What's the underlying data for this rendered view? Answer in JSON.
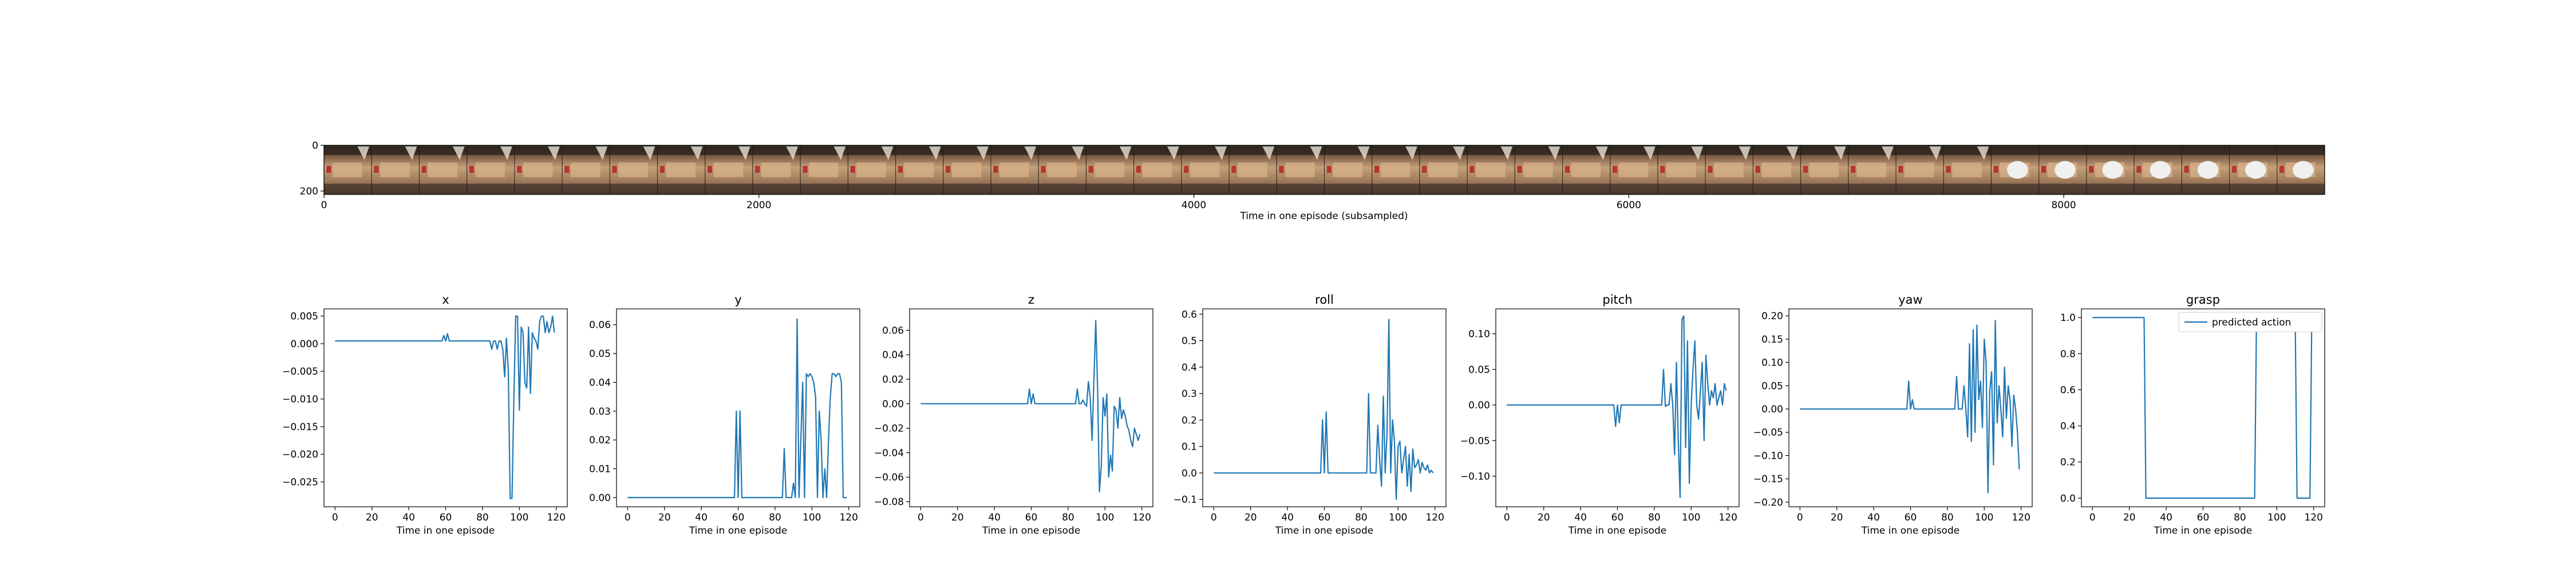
{
  "colors": {
    "series": "#1f77b4",
    "axes": "#000000",
    "background": "#ffffff"
  },
  "filmstrip": {
    "xlabel": "Time in one episode (subsampled)",
    "xticks": [
      0,
      2000,
      4000,
      6000,
      8000
    ],
    "yticks": [
      0,
      200
    ],
    "xlim": [
      0,
      9200
    ],
    "frame_count": 42
  },
  "chart_data": [
    {
      "type": "line",
      "title": "x",
      "xlabel": "Time in one episode",
      "xlim": [
        -6,
        126
      ],
      "ylim": [
        -0.0295,
        0.0063
      ],
      "xticks": [
        0,
        20,
        40,
        60,
        80,
        100,
        120
      ],
      "yticks": [
        -0.025,
        -0.02,
        -0.015,
        -0.01,
        -0.005,
        0.0,
        0.005
      ],
      "ytick_labels": [
        "−0.025",
        "−0.020",
        "−0.015",
        "−0.010",
        "−0.005",
        "0.000",
        "0.005"
      ],
      "series": [
        {
          "x": [
            0,
            58,
            59,
            60,
            61,
            62,
            63,
            84,
            85,
            86,
            87,
            88,
            89,
            90,
            91,
            92,
            93,
            94,
            95,
            96,
            97,
            98,
            99,
            100,
            101,
            102,
            103,
            104,
            105,
            106,
            107,
            108,
            109,
            110,
            111,
            112,
            113,
            114,
            115,
            116,
            117,
            118,
            119
          ],
          "y": [
            0.0005,
            0.0005,
            0.0015,
            0.0005,
            0.0018,
            0.0005,
            0.0005,
            0.0005,
            -0.001,
            0.0005,
            0.0005,
            -0.001,
            0.0005,
            0.0005,
            -0.001,
            -0.006,
            0.001,
            -0.005,
            -0.028,
            -0.028,
            -0.01,
            0.005,
            0.005,
            -0.012,
            0.003,
            0.002,
            -0.007,
            -0.008,
            0.003,
            -0.009,
            0.002,
            0.001,
            0.0005,
            -0.001,
            0.004,
            0.005,
            0.005,
            0.002,
            0.004,
            0.002,
            0.003,
            0.005,
            0.002
          ]
        }
      ]
    },
    {
      "type": "line",
      "title": "y",
      "xlabel": "Time in one episode",
      "xlim": [
        -6,
        126
      ],
      "ylim": [
        -0.0032,
        0.0655
      ],
      "xticks": [
        0,
        20,
        40,
        60,
        80,
        100,
        120
      ],
      "yticks": [
        0.0,
        0.01,
        0.02,
        0.03,
        0.04,
        0.05,
        0.06
      ],
      "ytick_labels": [
        "0.00",
        "0.01",
        "0.02",
        "0.03",
        "0.04",
        "0.05",
        "0.06"
      ],
      "series": [
        {
          "x": [
            0,
            58,
            59,
            60,
            61,
            62,
            84,
            85,
            86,
            89,
            90,
            91,
            92,
            93,
            94,
            95,
            96,
            97,
            98,
            99,
            100,
            101,
            102,
            103,
            104,
            105,
            106,
            107,
            108,
            109,
            110,
            111,
            112,
            113,
            114,
            115,
            116,
            117,
            118,
            119
          ],
          "y": [
            0.0,
            0.0,
            0.03,
            0.0,
            0.03,
            0.0,
            0.0,
            0.017,
            0.0,
            0.0,
            0.005,
            0.0,
            0.062,
            0.0,
            0.02,
            0.04,
            0.0,
            0.043,
            0.042,
            0.043,
            0.042,
            0.04,
            0.035,
            0.0,
            0.03,
            0.02,
            0.0,
            0.01,
            0.0,
            0.02,
            0.035,
            0.043,
            0.043,
            0.042,
            0.043,
            0.043,
            0.04,
            0.0,
            0.0,
            0.0
          ]
        }
      ]
    },
    {
      "type": "line",
      "title": "z",
      "xlabel": "Time in one episode",
      "xlim": [
        -6,
        126
      ],
      "ylim": [
        -0.0842,
        0.0775
      ],
      "xticks": [
        0,
        20,
        40,
        60,
        80,
        100,
        120
      ],
      "yticks": [
        -0.08,
        -0.06,
        -0.04,
        -0.02,
        0.0,
        0.02,
        0.04,
        0.06
      ],
      "ytick_labels": [
        "−0.08",
        "−0.06",
        "−0.04",
        "−0.02",
        "0.00",
        "0.02",
        "0.04",
        "0.06"
      ],
      "series": [
        {
          "x": [
            0,
            58,
            59,
            60,
            61,
            62,
            84,
            85,
            86,
            87,
            88,
            89,
            90,
            91,
            92,
            93,
            94,
            95,
            96,
            97,
            98,
            99,
            100,
            101,
            102,
            103,
            104,
            105,
            106,
            107,
            108,
            109,
            110,
            111,
            112,
            113,
            114,
            115,
            116,
            117,
            118,
            119
          ],
          "y": [
            0.0,
            0.0,
            0.012,
            0.0,
            0.008,
            0.0,
            0.0,
            0.012,
            0.0,
            0.0,
            0.003,
            0.0,
            -0.002,
            0.018,
            0.005,
            -0.03,
            0.02,
            0.068,
            0.012,
            -0.072,
            -0.05,
            0.005,
            -0.01,
            0.008,
            -0.06,
            -0.042,
            -0.055,
            -0.002,
            -0.005,
            -0.02,
            0.005,
            -0.012,
            -0.005,
            -0.01,
            -0.018,
            -0.022,
            -0.03,
            -0.035,
            -0.02,
            -0.025,
            -0.03,
            -0.025
          ]
        }
      ]
    },
    {
      "type": "line",
      "title": "roll",
      "xlabel": "Time in one episode",
      "xlim": [
        -6,
        126
      ],
      "ylim": [
        -0.128,
        0.62
      ],
      "xticks": [
        0,
        20,
        40,
        60,
        80,
        100,
        120
      ],
      "yticks": [
        -0.1,
        0.0,
        0.1,
        0.2,
        0.3,
        0.4,
        0.5,
        0.6
      ],
      "ytick_labels": [
        "−0.1",
        "0.0",
        "0.1",
        "0.2",
        "0.3",
        "0.4",
        "0.5",
        "0.6"
      ],
      "series": [
        {
          "x": [
            0,
            58,
            59,
            60,
            61,
            62,
            83,
            84,
            85,
            86,
            88,
            89,
            90,
            91,
            92,
            93,
            94,
            95,
            96,
            97,
            98,
            99,
            100,
            101,
            102,
            103,
            104,
            105,
            106,
            107,
            108,
            109,
            110,
            111,
            112,
            113,
            114,
            115,
            116,
            117,
            118,
            119
          ],
          "y": [
            0.0,
            0.0,
            0.2,
            0.0,
            0.23,
            0.0,
            0.0,
            0.3,
            0.0,
            0.0,
            0.0,
            0.18,
            0.05,
            -0.05,
            0.29,
            0.0,
            0.15,
            0.58,
            0.0,
            0.2,
            0.12,
            -0.1,
            0.1,
            0.12,
            0.0,
            0.05,
            0.1,
            -0.05,
            0.07,
            -0.07,
            0.09,
            0.02,
            0.03,
            0.05,
            0.0,
            0.04,
            0.02,
            0.01,
            0.03,
            0.0,
            0.01,
            0.0
          ]
        }
      ]
    },
    {
      "type": "line",
      "title": "pitch",
      "xlabel": "Time in one episode",
      "xlim": [
        -6,
        126
      ],
      "ylim": [
        -0.143,
        0.135
      ],
      "xticks": [
        0,
        20,
        40,
        60,
        80,
        100,
        120
      ],
      "yticks": [
        -0.1,
        -0.05,
        0.0,
        0.05,
        0.1
      ],
      "ytick_labels": [
        "−0.10",
        "−0.05",
        "0.00",
        "0.05",
        "0.10"
      ],
      "series": [
        {
          "x": [
            0,
            58,
            59,
            60,
            61,
            62,
            84,
            85,
            86,
            87,
            88,
            89,
            90,
            91,
            92,
            93,
            94,
            95,
            96,
            97,
            98,
            99,
            100,
            101,
            102,
            103,
            104,
            105,
            106,
            107,
            108,
            109,
            110,
            111,
            112,
            113,
            114,
            115,
            116,
            117,
            118,
            119
          ],
          "y": [
            0.0,
            0.0,
            -0.03,
            0.0,
            -0.025,
            0.0,
            0.0,
            0.05,
            -0.002,
            0.0,
            0.0,
            0.03,
            0.0,
            -0.07,
            0.06,
            -0.05,
            -0.13,
            0.12,
            0.125,
            -0.06,
            0.09,
            -0.11,
            0.0,
            0.05,
            0.09,
            0.0,
            -0.02,
            0.02,
            0.06,
            -0.05,
            0.07,
            0.03,
            0.0,
            0.02,
            0.01,
            0.03,
            0.0,
            0.01,
            0.02,
            0.0,
            0.03,
            0.02
          ]
        }
      ]
    },
    {
      "type": "line",
      "title": "yaw",
      "xlabel": "Time in one episode",
      "xlim": [
        -6,
        126
      ],
      "ylim": [
        -0.21,
        0.215
      ],
      "xticks": [
        0,
        20,
        40,
        60,
        80,
        100,
        120
      ],
      "yticks": [
        -0.2,
        -0.15,
        -0.1,
        -0.05,
        0.0,
        0.05,
        0.1,
        0.15,
        0.2
      ],
      "ytick_labels": [
        "−0.20",
        "−0.15",
        "−0.10",
        "−0.05",
        "0.00",
        "0.05",
        "0.10",
        "0.15",
        "0.20"
      ],
      "series": [
        {
          "x": [
            0,
            58,
            59,
            60,
            61,
            62,
            84,
            85,
            86,
            87,
            88,
            89,
            90,
            91,
            92,
            93,
            94,
            95,
            96,
            97,
            98,
            99,
            100,
            101,
            102,
            103,
            104,
            105,
            106,
            107,
            108,
            109,
            110,
            111,
            112,
            113,
            114,
            115,
            116,
            117,
            118,
            119
          ],
          "y": [
            0.0,
            0.0,
            0.06,
            0.0,
            0.02,
            0.0,
            0.0,
            0.07,
            0.0,
            0.0,
            0.0,
            0.05,
            0.0,
            -0.06,
            0.14,
            -0.07,
            0.17,
            -0.05,
            0.18,
            0.02,
            0.06,
            -0.04,
            0.15,
            0.1,
            -0.18,
            0.04,
            0.08,
            -0.12,
            0.19,
            -0.03,
            0.05,
            0.0,
            -0.06,
            0.09,
            -0.02,
            0.05,
            0.02,
            -0.08,
            0.03,
            0.0,
            -0.05,
            -0.13
          ]
        }
      ]
    },
    {
      "type": "line",
      "title": "grasp",
      "xlabel": "Time in one episode",
      "xlim": [
        -6,
        126
      ],
      "ylim": [
        -0.048,
        1.048
      ],
      "xticks": [
        0,
        20,
        40,
        60,
        80,
        100,
        120
      ],
      "yticks": [
        0.0,
        0.2,
        0.4,
        0.6,
        0.8,
        1.0
      ],
      "ytick_labels": [
        "0.0",
        "0.2",
        "0.4",
        "0.6",
        "0.8",
        "1.0"
      ],
      "legend": "predicted action",
      "series": [
        {
          "name": "predicted action",
          "x": [
            0,
            28,
            29,
            88,
            89,
            110,
            111,
            116,
            117,
            118,
            119
          ],
          "y": [
            1.0,
            1.0,
            0.0,
            0.0,
            1.0,
            1.0,
            0.0,
            0.0,
            0.0,
            0.0,
            1.0
          ]
        }
      ]
    }
  ]
}
